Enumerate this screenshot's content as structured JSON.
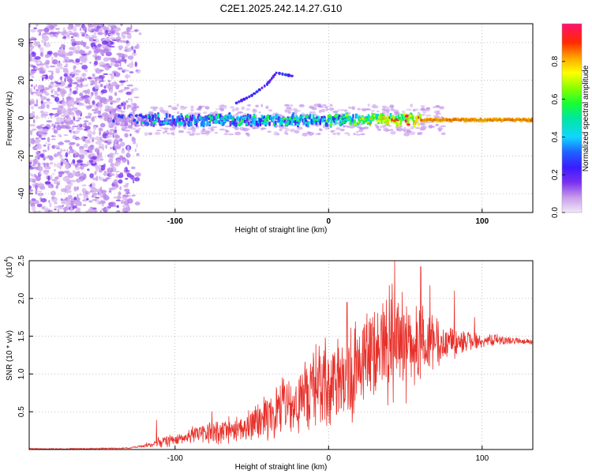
{
  "title": "C2E1.2025.242.14.27.G10",
  "colors": {
    "snr_line": "#e8302a",
    "axis": "#000000",
    "grid": "#000000"
  },
  "chart_data": [
    {
      "type": "heatmap",
      "name": "spectrogram",
      "xlabel": "Height of straight line (km)",
      "ylabel": "Frequency (Hz)",
      "xlim": [
        -195,
        133
      ],
      "ylim": [
        -50,
        50
      ],
      "x_ticks": [
        -100,
        0,
        100
      ],
      "x_tick_labels": [
        "-100",
        "0",
        "100"
      ],
      "y_ticks": [
        -40,
        -20,
        0,
        20,
        40
      ],
      "y_tick_labels": [
        "-40",
        "-20",
        "0",
        "20",
        "40"
      ],
      "colorbar": {
        "label": "Normalized spectral amplitude",
        "range": [
          0,
          1
        ],
        "ticks": [
          0.0,
          0.2,
          0.4,
          0.6,
          0.8
        ],
        "tick_labels": [
          "0.0",
          "0.2",
          "0.4",
          "0.6",
          "0.8"
        ]
      },
      "features": [
        {
          "description": "diffuse noise region",
          "x_range": [
            -195,
            -122
          ],
          "freq_range": [
            -50,
            50
          ],
          "amplitude": 0.05
        },
        {
          "description": "carrier band",
          "x_range": [
            -140,
            133
          ],
          "freq": -1,
          "amplitude_start": 0.2,
          "amplitude_end": 0.95
        },
        {
          "description": "upper branch",
          "points": [
            [
              -60,
              8
            ],
            [
              -50,
              12
            ],
            [
              -40,
              18
            ],
            [
              -34,
              24
            ],
            [
              -22,
              22
            ]
          ]
        }
      ]
    },
    {
      "type": "line",
      "name": "snr",
      "xlabel": "Height of straight line (km)",
      "ylabel": "SNR (10 * v/v)",
      "scale_label": "(x10",
      "scale_exponent": "4",
      "xlim": [
        -195,
        133
      ],
      "ylim": [
        0,
        2.5
      ],
      "x_ticks": [
        -100,
        0,
        100
      ],
      "x_tick_labels": [
        "-100",
        "0",
        "100"
      ],
      "y_ticks": [
        0.5,
        1.0,
        1.5,
        2.0,
        2.5
      ],
      "y_tick_labels": [
        "0.5",
        "1.0",
        "1.5",
        "2.0",
        "2.5"
      ],
      "series": [
        {
          "name": "SNR",
          "color": "#e8302a",
          "x": [
            -195,
            -160,
            -130,
            -122,
            -110,
            -100,
            -90,
            -80,
            -70,
            -60,
            -50,
            -40,
            -30,
            -20,
            -10,
            0,
            10,
            20,
            30,
            40,
            50,
            60,
            70,
            80,
            90,
            100,
            110,
            120,
            133
          ],
          "mean": [
            0.01,
            0.01,
            0.02,
            0.04,
            0.1,
            0.14,
            0.18,
            0.22,
            0.24,
            0.28,
            0.32,
            0.42,
            0.52,
            0.62,
            0.75,
            0.88,
            0.98,
            1.12,
            1.3,
            1.45,
            1.4,
            1.38,
            1.4,
            1.42,
            1.45,
            1.45,
            1.45,
            1.44,
            1.42
          ],
          "spread": [
            0.01,
            0.01,
            0.01,
            0.02,
            0.08,
            0.1,
            0.12,
            0.16,
            0.18,
            0.22,
            0.26,
            0.35,
            0.45,
            0.55,
            0.65,
            0.75,
            0.8,
            0.85,
            0.9,
            0.95,
            0.85,
            0.6,
            0.4,
            0.25,
            0.15,
            0.1,
            0.08,
            0.05,
            0.04
          ],
          "peaks": [
            [
              -112,
              0.39
            ],
            [
              -76,
              0.5
            ],
            [
              -30,
              0.95
            ],
            [
              -10,
              1.28
            ],
            [
              12,
              1.95
            ],
            [
              43,
              2.5
            ],
            [
              60,
              2.42
            ],
            [
              66,
              2.17
            ],
            [
              82,
              2.1
            ],
            [
              95,
              1.75
            ]
          ]
        }
      ]
    }
  ]
}
